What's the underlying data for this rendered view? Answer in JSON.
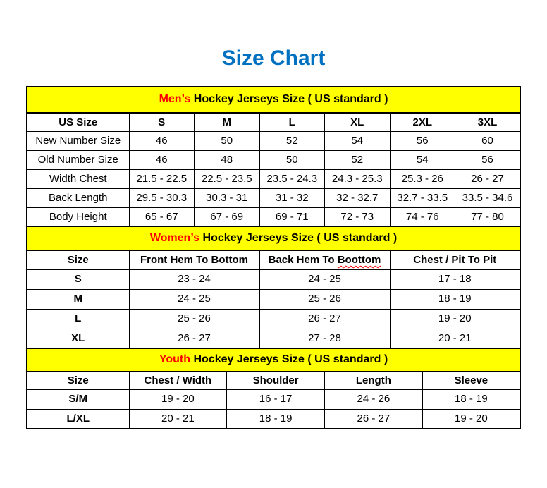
{
  "page": {
    "title": "Size Chart"
  },
  "colors": {
    "title_blue": "#0070C0",
    "highlight_red": "#FF0000",
    "band_yellow": "#FFFF00",
    "border_black": "#000000"
  },
  "tables": [
    {
      "name": "mens",
      "band": {
        "highlight": "Men’s",
        "rest": " Hockey Jerseys Size ( US standard )"
      },
      "header": [
        "US Size",
        "S",
        "M",
        "L",
        "XL",
        "2XL",
        "3XL"
      ],
      "rows": [
        [
          "New Number Size",
          "46",
          "50",
          "52",
          "54",
          "56",
          "60"
        ],
        [
          "Old Number Size",
          "46",
          "48",
          "50",
          "52",
          "54",
          "56"
        ],
        [
          "Width Chest",
          "21.5 - 22.5",
          "22.5 - 23.5",
          "23.5 - 24.3",
          "24.3 - 25.3",
          "25.3 - 26",
          "26 - 27"
        ],
        [
          "Back Length",
          "29.5 - 30.3",
          "30.3 - 31",
          "31 - 32",
          "32 - 32.7",
          "32.7 - 33.5",
          "33.5 - 34.6"
        ],
        [
          "Body Height",
          "65 - 67",
          "67 - 69",
          "69 - 71",
          "72 - 73",
          "74 - 76",
          "77 - 80"
        ]
      ],
      "bold_row_labels": false
    },
    {
      "name": "womens",
      "band": {
        "highlight": "Women’s",
        "rest": " Hockey Jerseys Size ( US standard )"
      },
      "header": [
        "Size",
        "Front Hem To Bottom",
        {
          "text": "Back Hem To ",
          "wavy": "Boottom"
        },
        "Chest / Pit To Pit"
      ],
      "rows": [
        [
          "S",
          "23 - 24",
          "24 - 25",
          "17 - 18"
        ],
        [
          "M",
          "24 - 25",
          "25 - 26",
          "18 - 19"
        ],
        [
          "L",
          "25 - 26",
          "26 - 27",
          "19 - 20"
        ],
        [
          "XL",
          "26 - 27",
          "27 - 28",
          "20 - 21"
        ]
      ],
      "bold_row_labels": true
    },
    {
      "name": "youth",
      "band": {
        "highlight": "Youth",
        "rest": " Hockey Jerseys Size ( US standard )"
      },
      "header": [
        "Size",
        "Chest / Width",
        "Shoulder",
        "Length",
        "Sleeve"
      ],
      "rows": [
        [
          "S/M",
          "19 - 20",
          "16 - 17",
          "24 - 26",
          "18 - 19"
        ],
        [
          "L/XL",
          "20 - 21",
          "18 - 19",
          "26 - 27",
          "19 - 20"
        ]
      ],
      "bold_row_labels": true
    }
  ]
}
